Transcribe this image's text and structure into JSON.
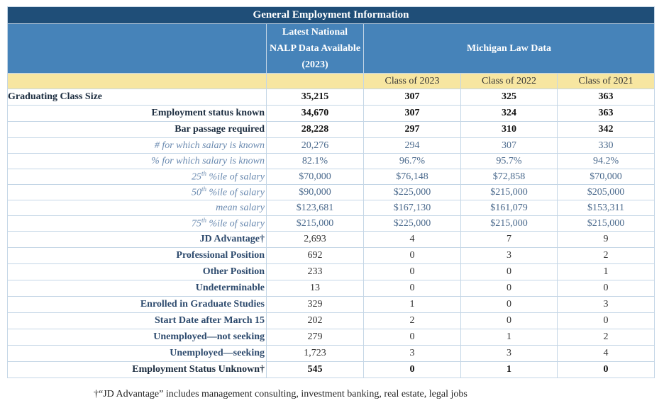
{
  "table": {
    "title": "General Employment Information",
    "nalp_header": [
      "Latest National",
      "NALP Data Available",
      "(2023)"
    ],
    "michigan_header": "Michigan Law Data",
    "classes": [
      "Class of 2023",
      "Class of 2022",
      "Class of 2021"
    ],
    "rows": [
      {
        "style": "lead",
        "label": "Graduating Class Size",
        "values": [
          "35,215",
          "307",
          "325",
          "363"
        ]
      },
      {
        "style": "bold",
        "label": "Employment status known",
        "values": [
          "34,670",
          "307",
          "324",
          "363"
        ]
      },
      {
        "style": "bold",
        "label": "Bar passage required",
        "values": [
          "28,228",
          "297",
          "310",
          "342"
        ]
      },
      {
        "style": "italic",
        "label": "# for which salary is known",
        "values": [
          "20,276",
          "294",
          "307",
          "330"
        ]
      },
      {
        "style": "italic",
        "label": "% for which salary is known",
        "values": [
          "82.1%",
          "96.7%",
          "95.7%",
          "94.2%"
        ]
      },
      {
        "style": "italic",
        "label": {
          "base": "25",
          "sup": "th",
          "rest": " %ile of salary"
        },
        "values": [
          "$70,000",
          "$76,148",
          "$72,858",
          "$70,000"
        ]
      },
      {
        "style": "italic",
        "label": {
          "base": "50",
          "sup": "th",
          "rest": " %ile of salary"
        },
        "values": [
          "$90,000",
          "$225,000",
          "$215,000",
          "$205,000"
        ]
      },
      {
        "style": "italic",
        "label": "mean salary",
        "values": [
          "$123,681",
          "$167,130",
          "$161,079",
          "$153,311"
        ]
      },
      {
        "style": "italic",
        "label": {
          "base": "75",
          "sup": "th",
          "rest": " %ile of salary"
        },
        "values": [
          "$215,000",
          "$225,000",
          "$215,000",
          "$215,000"
        ]
      },
      {
        "style": "sub",
        "label": "JD Advantage†",
        "values": [
          "2,693",
          "4",
          "7",
          "9"
        ]
      },
      {
        "style": "sub",
        "label": "Professional Position",
        "values": [
          "692",
          "0",
          "3",
          "2"
        ]
      },
      {
        "style": "sub",
        "label": "Other Position",
        "values": [
          "233",
          "0",
          "0",
          "1"
        ]
      },
      {
        "style": "sub",
        "label": "Undeterminable",
        "values": [
          "13",
          "0",
          "0",
          "0"
        ]
      },
      {
        "style": "sub",
        "label": "Enrolled in Graduate Studies",
        "values": [
          "329",
          "1",
          "0",
          "3"
        ]
      },
      {
        "style": "sub",
        "label": "Start Date after March 15",
        "values": [
          "202",
          "2",
          "0",
          "0"
        ]
      },
      {
        "style": "sub",
        "label": "Unemployed—not seeking",
        "values": [
          "279",
          "0",
          "1",
          "2"
        ]
      },
      {
        "style": "sub",
        "label": "Unemployed—seeking",
        "values": [
          "1,723",
          "3",
          "3",
          "4"
        ]
      },
      {
        "style": "bold",
        "label": "Employment Status Unknown†",
        "values": [
          "545",
          "0",
          "1",
          "0"
        ]
      }
    ],
    "footnote": "†“JD Advantage” includes management consulting, investment banking, real estate, legal jobs"
  }
}
